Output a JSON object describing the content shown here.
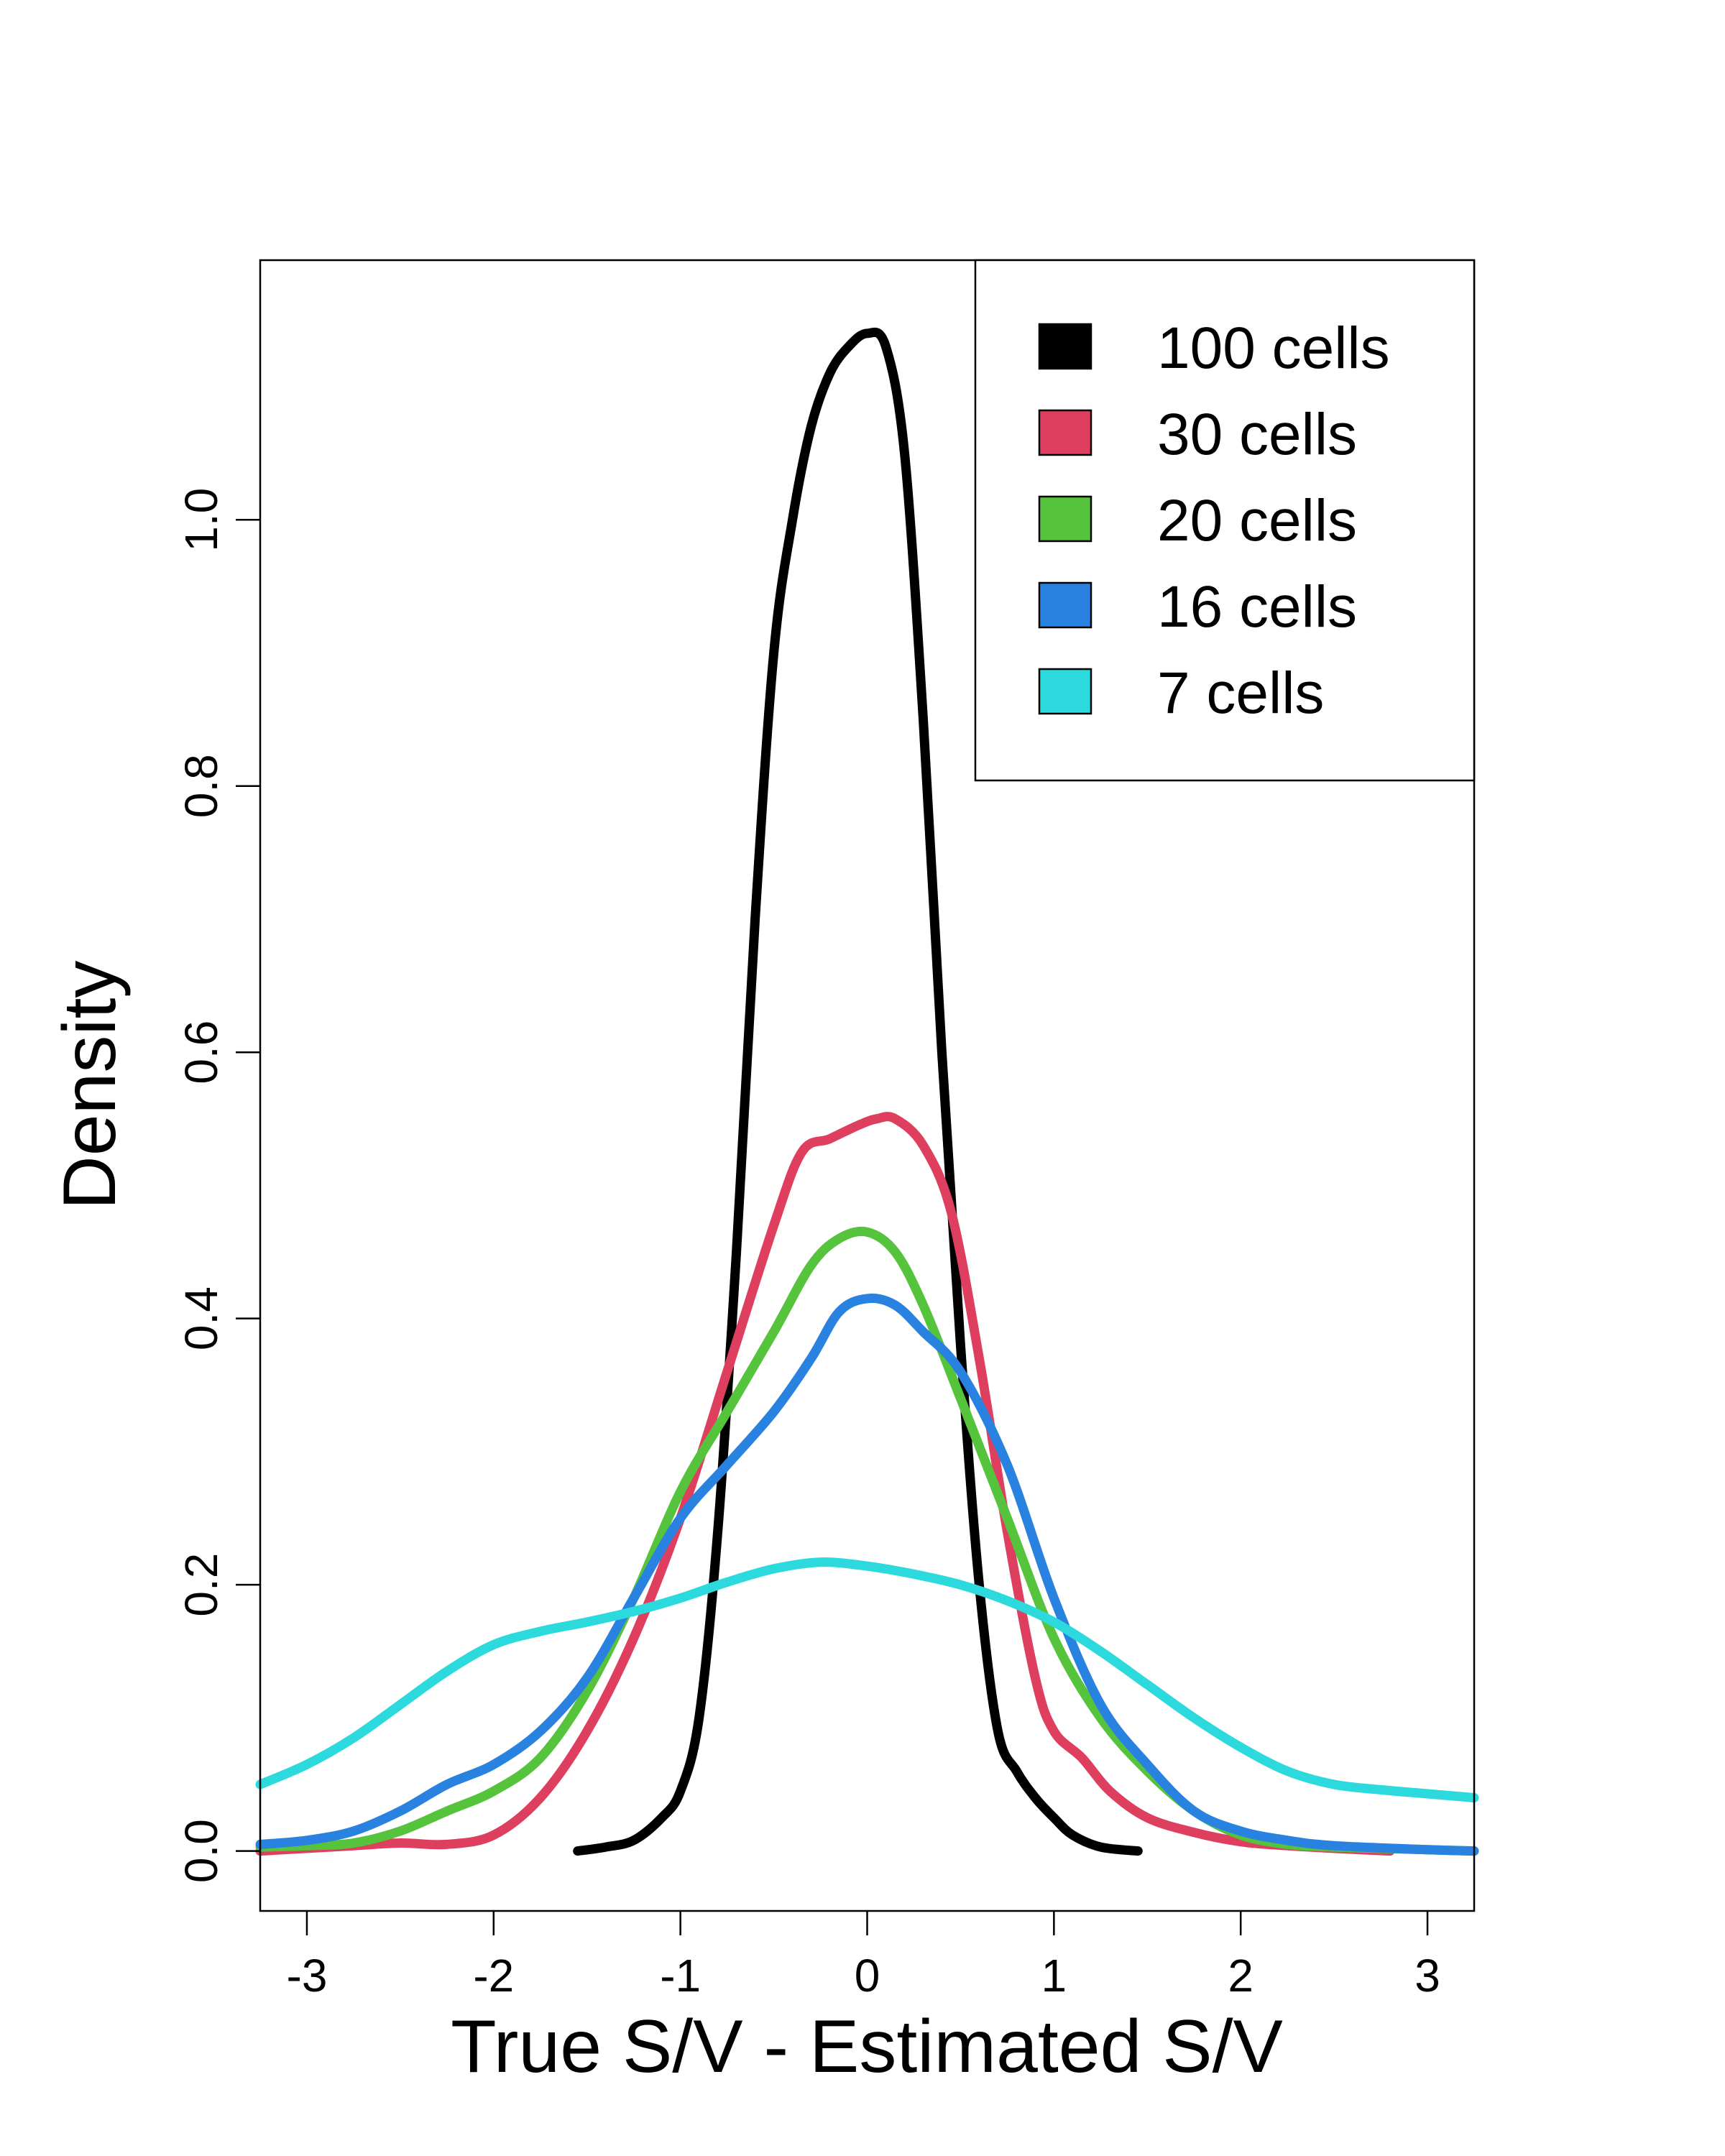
{
  "chart_data": {
    "type": "line",
    "title": "",
    "xlabel": "True S/V - Estimated S/V",
    "ylabel": "Density",
    "xlim": [
      -3.25,
      3.25
    ],
    "ylim": [
      -0.045,
      1.195
    ],
    "xticks": [
      -3,
      -2,
      -1,
      0,
      1,
      2,
      3
    ],
    "xtick_labels": [
      "-3",
      "-2",
      "-1",
      "0",
      "1",
      "2",
      "3"
    ],
    "yticks": [
      0.0,
      0.2,
      0.4,
      0.6,
      0.8,
      1.0
    ],
    "ytick_labels": [
      "0.0",
      "0.2",
      "0.4",
      "0.6",
      "0.8",
      "1.0"
    ],
    "grid": false,
    "legend_position": "top-right",
    "series": [
      {
        "name": "100 cells",
        "color": "#000000",
        "points": [
          [
            -1.55,
            0.0
          ],
          [
            -1.4,
            0.003
          ],
          [
            -1.25,
            0.008
          ],
          [
            -1.1,
            0.025
          ],
          [
            -1.0,
            0.045
          ],
          [
            -0.9,
            0.1
          ],
          [
            -0.8,
            0.24
          ],
          [
            -0.7,
            0.45
          ],
          [
            -0.6,
            0.7
          ],
          [
            -0.5,
            0.9
          ],
          [
            -0.4,
            1.0
          ],
          [
            -0.3,
            1.07
          ],
          [
            -0.2,
            1.11
          ],
          [
            -0.1,
            1.13
          ],
          [
            0.0,
            1.14
          ],
          [
            0.1,
            1.13
          ],
          [
            0.2,
            1.05
          ],
          [
            0.3,
            0.85
          ],
          [
            0.4,
            0.6
          ],
          [
            0.5,
            0.38
          ],
          [
            0.6,
            0.2
          ],
          [
            0.7,
            0.09
          ],
          [
            0.8,
            0.06
          ],
          [
            0.9,
            0.04
          ],
          [
            1.0,
            0.025
          ],
          [
            1.1,
            0.012
          ],
          [
            1.25,
            0.003
          ],
          [
            1.45,
            0.0
          ]
        ]
      },
      {
        "name": "30 cells",
        "color": "#DF3F5E",
        "points": [
          [
            -3.25,
            0.0
          ],
          [
            -3.0,
            0.002
          ],
          [
            -2.75,
            0.004
          ],
          [
            -2.5,
            0.006
          ],
          [
            -2.25,
            0.005
          ],
          [
            -2.0,
            0.012
          ],
          [
            -1.75,
            0.04
          ],
          [
            -1.5,
            0.09
          ],
          [
            -1.25,
            0.16
          ],
          [
            -1.0,
            0.25
          ],
          [
            -0.75,
            0.36
          ],
          [
            -0.5,
            0.47
          ],
          [
            -0.35,
            0.525
          ],
          [
            -0.2,
            0.535
          ],
          [
            -0.05,
            0.545
          ],
          [
            0.05,
            0.55
          ],
          [
            0.15,
            0.55
          ],
          [
            0.3,
            0.53
          ],
          [
            0.45,
            0.48
          ],
          [
            0.6,
            0.37
          ],
          [
            0.75,
            0.24
          ],
          [
            0.9,
            0.13
          ],
          [
            1.0,
            0.09
          ],
          [
            1.15,
            0.07
          ],
          [
            1.3,
            0.045
          ],
          [
            1.5,
            0.025
          ],
          [
            1.75,
            0.014
          ],
          [
            2.0,
            0.007
          ],
          [
            2.25,
            0.004
          ],
          [
            2.5,
            0.002
          ],
          [
            2.8,
            0.0
          ]
        ]
      },
      {
        "name": "20 cells",
        "color": "#56C33C",
        "points": [
          [
            -3.25,
            0.003
          ],
          [
            -3.0,
            0.004
          ],
          [
            -2.75,
            0.006
          ],
          [
            -2.5,
            0.015
          ],
          [
            -2.25,
            0.03
          ],
          [
            -2.0,
            0.045
          ],
          [
            -1.75,
            0.07
          ],
          [
            -1.5,
            0.12
          ],
          [
            -1.25,
            0.19
          ],
          [
            -1.0,
            0.27
          ],
          [
            -0.75,
            0.33
          ],
          [
            -0.5,
            0.39
          ],
          [
            -0.3,
            0.44
          ],
          [
            -0.15,
            0.46
          ],
          [
            0.0,
            0.465
          ],
          [
            0.15,
            0.45
          ],
          [
            0.3,
            0.41
          ],
          [
            0.5,
            0.34
          ],
          [
            0.75,
            0.25
          ],
          [
            1.0,
            0.16
          ],
          [
            1.25,
            0.1
          ],
          [
            1.5,
            0.06
          ],
          [
            1.75,
            0.03
          ],
          [
            2.0,
            0.012
          ],
          [
            2.25,
            0.005
          ],
          [
            2.5,
            0.003
          ],
          [
            3.0,
            0.001
          ],
          [
            3.25,
            0.0
          ]
        ]
      },
      {
        "name": "16 cells",
        "color": "#2A82E0",
        "points": [
          [
            -3.25,
            0.005
          ],
          [
            -3.0,
            0.008
          ],
          [
            -2.75,
            0.015
          ],
          [
            -2.5,
            0.03
          ],
          [
            -2.25,
            0.05
          ],
          [
            -2.0,
            0.065
          ],
          [
            -1.75,
            0.09
          ],
          [
            -1.5,
            0.13
          ],
          [
            -1.25,
            0.19
          ],
          [
            -1.0,
            0.25
          ],
          [
            -0.75,
            0.29
          ],
          [
            -0.5,
            0.33
          ],
          [
            -0.3,
            0.37
          ],
          [
            -0.15,
            0.405
          ],
          [
            0.0,
            0.415
          ],
          [
            0.15,
            0.41
          ],
          [
            0.3,
            0.39
          ],
          [
            0.5,
            0.36
          ],
          [
            0.75,
            0.29
          ],
          [
            1.0,
            0.19
          ],
          [
            1.25,
            0.11
          ],
          [
            1.5,
            0.065
          ],
          [
            1.75,
            0.03
          ],
          [
            2.0,
            0.015
          ],
          [
            2.25,
            0.008
          ],
          [
            2.5,
            0.004
          ],
          [
            3.0,
            0.001
          ],
          [
            3.25,
            0.0
          ]
        ]
      },
      {
        "name": "7 cells",
        "color": "#2CD9DC",
        "points": [
          [
            -3.25,
            0.05
          ],
          [
            -3.0,
            0.065
          ],
          [
            -2.75,
            0.085
          ],
          [
            -2.5,
            0.11
          ],
          [
            -2.25,
            0.135
          ],
          [
            -2.0,
            0.155
          ],
          [
            -1.75,
            0.165
          ],
          [
            -1.5,
            0.172
          ],
          [
            -1.25,
            0.18
          ],
          [
            -1.0,
            0.19
          ],
          [
            -0.75,
            0.202
          ],
          [
            -0.5,
            0.212
          ],
          [
            -0.25,
            0.217
          ],
          [
            0.0,
            0.214
          ],
          [
            0.25,
            0.208
          ],
          [
            0.5,
            0.2
          ],
          [
            0.75,
            0.188
          ],
          [
            1.0,
            0.172
          ],
          [
            1.25,
            0.15
          ],
          [
            1.5,
            0.125
          ],
          [
            1.75,
            0.1
          ],
          [
            2.0,
            0.078
          ],
          [
            2.25,
            0.06
          ],
          [
            2.5,
            0.05
          ],
          [
            2.75,
            0.046
          ],
          [
            3.0,
            0.043
          ],
          [
            3.25,
            0.04
          ]
        ]
      }
    ]
  }
}
